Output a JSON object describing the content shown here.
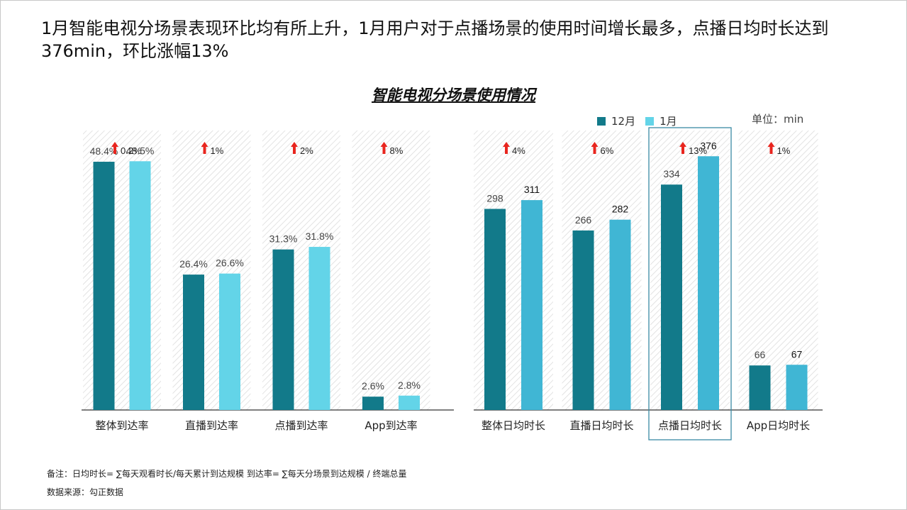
{
  "headline": "1月智能电视分场景表现环比均有所上升，1月用户对于点播场景的使用时间增长最多，点播日均时长达到376min，环比涨幅13%",
  "legend": {
    "dec_label": "12月",
    "jan_label": "1月"
  },
  "unit_label": "单位：min",
  "footnotes": {
    "note": "备注：日均时长= ∑每天观看时长/每天累计到达规模    到达率= ∑每天分场景到达规模 / 终端总量",
    "source": "数据来源：勾正数据"
  },
  "colors": {
    "dec": "#127a8a",
    "jan_reach": "#63d4e8",
    "jan_time": "#40b6d4",
    "arrow": "#e8251e",
    "highlight_box": "#3a8aa3"
  },
  "chart_data": [
    {
      "type": "bar",
      "title": "智能电视分场景使用情况",
      "categories": [
        "整体到达率",
        "直播到达率",
        "点播到达率",
        "App到达率"
      ],
      "series": [
        {
          "name": "12月",
          "values": [
            48.4,
            26.4,
            31.3,
            2.6
          ],
          "labels": [
            "48.4%",
            "26.4%",
            "31.3%",
            "2.6%"
          ]
        },
        {
          "name": "1月",
          "values": [
            48.5,
            26.6,
            31.8,
            2.8
          ],
          "labels": [
            "48.5%",
            "26.6%",
            "31.8%",
            "2.8%"
          ]
        }
      ],
      "growth": [
        "0.2%",
        "1%",
        "2%",
        "8%"
      ],
      "ylim": [
        0,
        65
      ]
    },
    {
      "type": "bar",
      "categories": [
        "整体日均时长",
        "直播日均时长",
        "点播日均时长",
        "App日均时长"
      ],
      "series": [
        {
          "name": "12月",
          "values": [
            298,
            266,
            334,
            66
          ],
          "labels": [
            "298",
            "266",
            "334",
            "66"
          ]
        },
        {
          "name": "1月",
          "values": [
            311,
            282,
            376,
            67
          ],
          "labels": [
            "311",
            "282",
            "376",
            "67"
          ]
        }
      ],
      "growth": [
        "4%",
        "6%",
        "13%",
        "1%"
      ],
      "highlight_category": "点播日均时长",
      "unit": "min",
      "ylim": [
        0,
        494
      ]
    }
  ]
}
